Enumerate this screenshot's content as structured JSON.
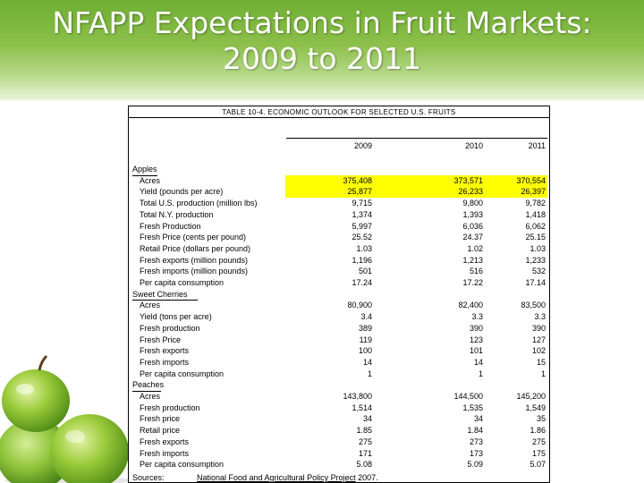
{
  "slide": {
    "title_line1": "NFAPP Expectations in Fruit Markets:",
    "title_line2": "2009 to 2011"
  },
  "table": {
    "caption": "TABLE 10-4.  ECONOMIC OUTLOOK FOR SELECTED U.S. FRUITS",
    "years": [
      "2009",
      "2010",
      "2011"
    ],
    "sections": [
      {
        "name": "Apples",
        "rows": [
          {
            "label": "Acres",
            "values": [
              "375,408",
              "373,571",
              "370,554"
            ],
            "highlighted": true
          },
          {
            "label": "Yield (pounds per acre)",
            "values": [
              "25,877",
              "26,233",
              "26,397"
            ],
            "highlighted": true
          },
          {
            "label": "Total U.S. production (million lbs)",
            "values": [
              "9,715",
              "9,800",
              "9,782"
            ]
          },
          {
            "label": "Total N.Y. production",
            "values": [
              "1,374",
              "1,393",
              "1,418"
            ]
          },
          {
            "label": "Fresh Production",
            "values": [
              "5,997",
              "6,036",
              "6,062"
            ]
          },
          {
            "label": "Fresh Price (cents per pound)",
            "values": [
              "25.52",
              "24.37",
              "25.15"
            ]
          },
          {
            "label": "Retail Price (dollars per pound)",
            "values": [
              "1.03",
              "1.02",
              "1.03"
            ]
          },
          {
            "label": "Fresh exports (million pounds)",
            "values": [
              "1,196",
              "1,213",
              "1,233"
            ]
          },
          {
            "label": "Fresh imports (million pounds)",
            "values": [
              "501",
              "516",
              "532"
            ]
          },
          {
            "label": "Per capita consumption",
            "values": [
              "17.24",
              "17.22",
              "17.14"
            ]
          }
        ]
      },
      {
        "name": "Sweet Cherries",
        "rows": [
          {
            "label": "Acres",
            "values": [
              "80,900",
              "82,400",
              "83,500"
            ]
          },
          {
            "label": "Yield (tons per acre)",
            "values": [
              "3.4",
              "3.3",
              "3.3"
            ]
          },
          {
            "label": "Fresh production",
            "values": [
              "389",
              "390",
              "390"
            ]
          },
          {
            "label": "Fresh Price",
            "values": [
              "119",
              "123",
              "127"
            ]
          },
          {
            "label": "Fresh exports",
            "values": [
              "100",
              "101",
              "102"
            ]
          },
          {
            "label": "Fresh imports",
            "values": [
              "14",
              "14",
              "15"
            ]
          },
          {
            "label": "Per capita consumption",
            "values": [
              "1",
              "1",
              "1"
            ]
          }
        ]
      },
      {
        "name": "Peaches",
        "rows": [
          {
            "label": "Acres",
            "values": [
              "143,800",
              "144,500",
              "145,200"
            ]
          },
          {
            "label": "Fresh production",
            "values": [
              "1,514",
              "1,535",
              "1,549"
            ]
          },
          {
            "label": "Fresh price",
            "values": [
              "34",
              "34",
              "35"
            ]
          },
          {
            "label": "Retail price",
            "values": [
              "1.85",
              "1.84",
              "1.86"
            ]
          },
          {
            "label": "Fresh exports",
            "values": [
              "275",
              "273",
              "275"
            ]
          },
          {
            "label": "Fresh imports",
            "values": [
              "171",
              "173",
              "175"
            ]
          },
          {
            "label": "Per capita consumption",
            "values": [
              "5.08",
              "5.09",
              "5.07"
            ]
          }
        ]
      }
    ],
    "sources_label": "Sources:",
    "sources_link": "National Food and Agricultural Policy Project",
    "sources_year": " 2007."
  },
  "colors": {
    "header_green": "#8cc04a",
    "highlight": "#ffff00",
    "apple_green": "#8cc43c"
  },
  "decor": {
    "image_icon": "green-apples-image"
  }
}
